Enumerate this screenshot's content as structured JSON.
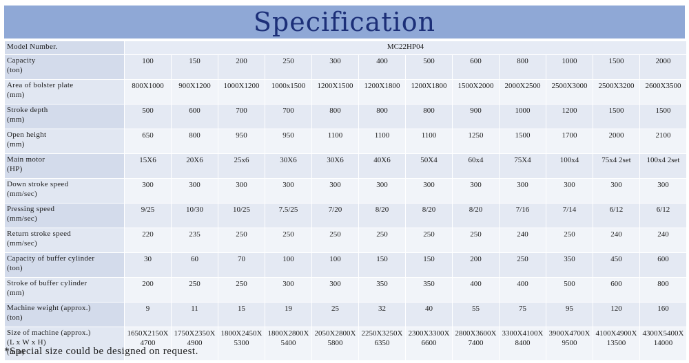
{
  "title": "Specification",
  "model": {
    "label": "Model Number.",
    "value": "MC22HP04"
  },
  "rows": [
    {
      "label": "Capacity",
      "unit": "(ton)",
      "values": [
        "100",
        "150",
        "200",
        "250",
        "300",
        "400",
        "500",
        "600",
        "800",
        "1000",
        "1500",
        "2000"
      ]
    },
    {
      "label": "Area of bolster plate",
      "unit": "(mm)",
      "values": [
        "800X1000",
        "900X1200",
        "1000X1200",
        "1000x1500",
        "1200X1500",
        "1200X1800",
        "1200X1800",
        "1500X2000",
        "2000X2500",
        "2500X3000",
        "2500X3200",
        "2600X3500"
      ]
    },
    {
      "label": "Stroke depth",
      "unit": "(mm)",
      "values": [
        "500",
        "600",
        "700",
        "700",
        "800",
        "800",
        "800",
        "900",
        "1000",
        "1200",
        "1500",
        "1500"
      ]
    },
    {
      "label": "Open height",
      "unit": "(mm)",
      "values": [
        "650",
        "800",
        "950",
        "950",
        "1100",
        "1100",
        "1100",
        "1250",
        "1500",
        "1700",
        "2000",
        "2100"
      ]
    },
    {
      "label": "Main motor",
      "unit": "(HP)",
      "values": [
        "15X6",
        "20X6",
        "25x6",
        "30X6",
        "30X6",
        "40X6",
        "50X4",
        "60x4",
        "75X4",
        "100x4",
        "75x4 2set",
        "100x4 2set"
      ]
    },
    {
      "label": "Down stroke speed",
      "unit": "(mm/sec)",
      "values": [
        "300",
        "300",
        "300",
        "300",
        "300",
        "300",
        "300",
        "300",
        "300",
        "300",
        "300",
        "300"
      ]
    },
    {
      "label": "Pressing speed",
      "unit": "(mm/sec)",
      "values": [
        "9/25",
        "10/30",
        "10/25",
        "7.5/25",
        "7/20",
        "8/20",
        "8/20",
        "8/20",
        "7/16",
        "7/14",
        "6/12",
        "6/12"
      ]
    },
    {
      "label": "Return stroke speed",
      "unit": "(mm/sec)",
      "values": [
        "220",
        "235",
        "250",
        "250",
        "250",
        "250",
        "250",
        "250",
        "240",
        "250",
        "240",
        "240"
      ]
    },
    {
      "label": "Capacity of buffer cylinder",
      "unit": "(ton)",
      "values": [
        "30",
        "60",
        "70",
        "100",
        "100",
        "150",
        "150",
        "200",
        "250",
        "350",
        "450",
        "600"
      ]
    },
    {
      "label": "Stroke of buffer cylinder",
      "unit": "(mm)",
      "values": [
        "200",
        "250",
        "250",
        "300",
        "300",
        "350",
        "350",
        "400",
        "400",
        "500",
        "600",
        "800"
      ]
    },
    {
      "label": "Machine weight (approx.)",
      "unit": "(ton)",
      "values": [
        "9",
        "11",
        "15",
        "19",
        "25",
        "32",
        "40",
        "55",
        "75",
        "95",
        "120",
        "160"
      ]
    }
  ],
  "size_row": {
    "label": "Size of machine (approx.)",
    "label2": "(L x W x H)",
    "unit": "(mm)",
    "values": [
      [
        "1650X2150X",
        "4700"
      ],
      [
        "1750X2350X",
        "4900"
      ],
      [
        "1800X2450X",
        "5300"
      ],
      [
        "1800X2800X",
        "5400"
      ],
      [
        "2050X2800X",
        "5800"
      ],
      [
        "2250X3250X",
        "6350"
      ],
      [
        "2300X3300X",
        "6600"
      ],
      [
        "2800X3600X",
        "7400"
      ],
      [
        "3300X4100X",
        "8400"
      ],
      [
        "3900X4700X",
        "9500"
      ],
      [
        "4100X4900X",
        "13500"
      ],
      [
        "4300X5400X",
        "14000"
      ]
    ]
  },
  "footnote": "*Special size could be designed on request."
}
